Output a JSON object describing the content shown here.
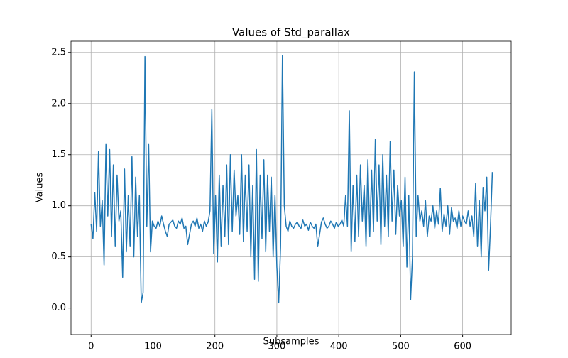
{
  "chart_data": {
    "type": "line",
    "title": "Values of Std_parallax",
    "xlabel": "Subsamples",
    "ylabel": "Values",
    "xlim": [
      -32.4,
      678.4
    ],
    "ylim": [
      -0.26,
      2.61
    ],
    "xticks": [
      0,
      100,
      200,
      300,
      400,
      500,
      600
    ],
    "yticks": [
      {
        "value": 0,
        "label": "0.0"
      },
      0.5,
      {
        "value": 1,
        "label": "1.0"
      },
      1.5,
      {
        "value": 2,
        "label": "2.0"
      },
      2.5
    ],
    "grid": true,
    "x": [
      0,
      3,
      6,
      9,
      12,
      15,
      18,
      21,
      24,
      27,
      30,
      33,
      36,
      39,
      42,
      45,
      48,
      51,
      54,
      57,
      60,
      63,
      66,
      69,
      72,
      75,
      78,
      81,
      84,
      87,
      90,
      93,
      96,
      99,
      102,
      105,
      108,
      111,
      114,
      117,
      120,
      123,
      126,
      129,
      132,
      135,
      138,
      141,
      144,
      147,
      150,
      153,
      156,
      159,
      162,
      165,
      168,
      171,
      174,
      177,
      180,
      183,
      186,
      189,
      192,
      195,
      198,
      201,
      204,
      207,
      210,
      213,
      216,
      219,
      222,
      225,
      228,
      231,
      234,
      237,
      240,
      243,
      246,
      249,
      252,
      255,
      258,
      261,
      264,
      267,
      270,
      273,
      276,
      279,
      282,
      285,
      288,
      291,
      294,
      297,
      300,
      303,
      306,
      309,
      312,
      315,
      318,
      321,
      324,
      327,
      330,
      333,
      336,
      339,
      342,
      345,
      348,
      351,
      354,
      357,
      360,
      363,
      366,
      369,
      372,
      375,
      378,
      381,
      384,
      387,
      390,
      393,
      396,
      399,
      402,
      405,
      408,
      411,
      414,
      417,
      420,
      423,
      426,
      429,
      432,
      435,
      438,
      441,
      444,
      447,
      450,
      453,
      456,
      459,
      462,
      465,
      468,
      471,
      474,
      477,
      480,
      483,
      486,
      489,
      492,
      495,
      498,
      501,
      504,
      507,
      510,
      513,
      516,
      519,
      522,
      525,
      528,
      531,
      534,
      537,
      540,
      543,
      546,
      549,
      552,
      555,
      558,
      561,
      564,
      567,
      570,
      573,
      576,
      579,
      582,
      585,
      588,
      591,
      594,
      597,
      600,
      603,
      606,
      609,
      612,
      615,
      618,
      621,
      624,
      627,
      630,
      633,
      636,
      639,
      642,
      645,
      648
    ],
    "series": [
      {
        "name": "Std_parallax",
        "color": "#1f77b4",
        "values": [
          0.82,
          0.68,
          1.13,
          0.75,
          1.53,
          0.8,
          1.05,
          0.42,
          1.6,
          0.9,
          1.55,
          0.7,
          1.4,
          0.6,
          1.3,
          0.85,
          0.95,
          0.3,
          1.36,
          0.55,
          1.1,
          0.6,
          1.48,
          0.5,
          1.28,
          0.7,
          1.1,
          0.05,
          0.15,
          2.46,
          0.8,
          1.6,
          0.55,
          0.85,
          0.8,
          0.78,
          0.85,
          0.8,
          0.9,
          0.82,
          0.75,
          0.7,
          0.82,
          0.84,
          0.86,
          0.8,
          0.78,
          0.85,
          0.82,
          0.88,
          0.78,
          0.8,
          0.62,
          0.72,
          0.82,
          0.85,
          0.8,
          0.88,
          0.78,
          0.82,
          0.75,
          0.85,
          0.8,
          0.84,
          0.95,
          1.94,
          0.53,
          1.1,
          0.45,
          1.3,
          0.6,
          1.2,
          0.7,
          1.4,
          0.62,
          1.5,
          0.75,
          1.35,
          0.9,
          1.1,
          0.72,
          1.5,
          0.65,
          1.3,
          0.75,
          1.4,
          0.5,
          1.2,
          0.28,
          1.55,
          0.26,
          1.3,
          0.68,
          1.45,
          0.55,
          1.3,
          0.75,
          1.28,
          0.5,
          1.1,
          0.4,
          0.05,
          0.6,
          2.47,
          1.0,
          0.8,
          0.75,
          0.85,
          0.8,
          0.78,
          0.82,
          0.84,
          0.8,
          0.78,
          0.86,
          0.8,
          0.82,
          0.76,
          0.84,
          0.8,
          0.78,
          0.82,
          0.6,
          0.72,
          0.84,
          0.88,
          0.82,
          0.78,
          0.8,
          0.85,
          0.82,
          0.78,
          0.84,
          0.8,
          0.82,
          0.86,
          0.8,
          1.1,
          0.8,
          1.93,
          0.55,
          1.2,
          0.65,
          1.3,
          0.7,
          1.4,
          0.85,
          1.2,
          0.6,
          1.45,
          0.7,
          1.35,
          0.75,
          1.65,
          0.85,
          1.4,
          0.62,
          1.5,
          0.8,
          1.3,
          0.7,
          1.63,
          0.85,
          1.35,
          0.72,
          1.2,
          0.9,
          1.05,
          0.6,
          1.28,
          0.4,
          1.1,
          0.08,
          0.5,
          2.31,
          0.7,
          1.1,
          0.85,
          0.95,
          0.8,
          1.05,
          0.7,
          0.9,
          0.85,
          1.0,
          0.78,
          0.95,
          0.82,
          1.17,
          0.75,
          0.92,
          0.8,
          1.0,
          0.72,
          0.98,
          0.85,
          0.88,
          0.78,
          0.95,
          0.8,
          0.9,
          0.85,
          0.82,
          0.95,
          0.8,
          0.9,
          0.7,
          1.22,
          0.6,
          1.05,
          0.5,
          1.18,
          0.95,
          1.28,
          0.37,
          0.8,
          1.33
        ]
      }
    ]
  }
}
